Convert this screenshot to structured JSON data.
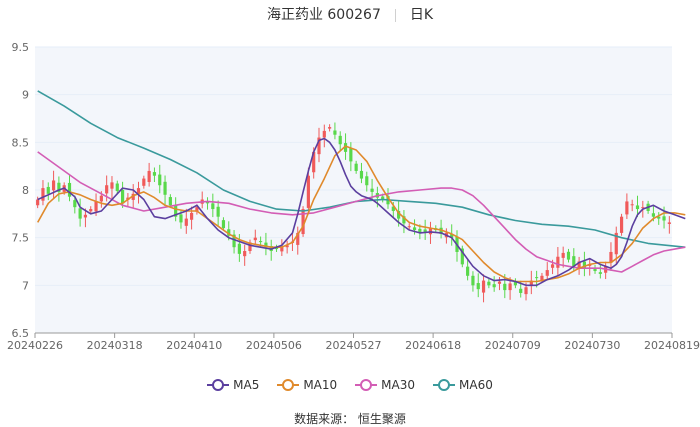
{
  "header": {
    "stock": "海正药业 600267",
    "period": "日K"
  },
  "source": "数据来源： 恒生聚源",
  "legend": [
    {
      "label": "MA5",
      "color": "#5b3f9f"
    },
    {
      "label": "MA10",
      "color": "#e08a2c"
    },
    {
      "label": "MA30",
      "color": "#d35db5"
    },
    {
      "label": "MA60",
      "color": "#3a9a9c"
    }
  ],
  "colors": {
    "up": "#f05a5a",
    "down": "#58d84a",
    "grid": "#e6eef8",
    "axis": "#666666"
  },
  "chart_data": {
    "type": "candlestick",
    "ylim": [
      6.5,
      9.5
    ],
    "yticks": [
      6.5,
      7,
      7.5,
      8,
      8.5,
      9,
      9.5
    ],
    "xticks": [
      "20240226",
      "20240318",
      "20240410",
      "20240506",
      "20240527",
      "20240618",
      "20240709",
      "20240730",
      "20240819"
    ],
    "close": [
      7.9,
      8.02,
      7.96,
      8.1,
      7.98,
      8.05,
      7.93,
      7.82,
      7.7,
      7.74,
      7.8,
      7.88,
      7.94,
      8.05,
      8.08,
      7.99,
      7.86,
      7.92,
      7.96,
      8.02,
      8.12,
      8.2,
      8.15,
      8.05,
      7.95,
      7.84,
      7.72,
      7.66,
      7.7,
      7.76,
      7.82,
      7.9,
      7.86,
      7.8,
      7.72,
      7.6,
      7.52,
      7.4,
      7.33,
      7.36,
      7.45,
      7.5,
      7.46,
      7.4,
      7.36,
      7.38,
      7.4,
      7.42,
      7.46,
      7.55,
      7.8,
      8.15,
      8.4,
      8.55,
      8.62,
      8.66,
      8.58,
      8.48,
      8.4,
      8.3,
      8.2,
      8.12,
      8.05,
      7.98,
      7.92,
      7.9,
      7.85,
      7.78,
      7.7,
      7.65,
      7.62,
      7.58,
      7.55,
      7.56,
      7.6,
      7.58,
      7.54,
      7.55,
      7.5,
      7.35,
      7.22,
      7.1,
      7.0,
      6.96,
      7.05,
      7.0,
      6.98,
      7.04,
      6.95,
      7.02,
      7.0,
      6.92,
      6.98,
      7.05,
      7.08,
      7.1,
      7.16,
      7.22,
      7.3,
      7.34,
      7.27,
      7.2,
      7.25,
      7.18,
      7.22,
      7.15,
      7.12,
      7.2,
      7.35,
      7.55,
      7.72,
      7.88,
      7.85,
      7.8,
      7.82,
      7.78,
      7.72,
      7.7,
      7.68,
      7.66
    ],
    "series": [
      {
        "name": "MA5",
        "points": [
          [
            0,
            7.9
          ],
          [
            2,
            7.95
          ],
          [
            4,
            8.0
          ],
          [
            5,
            8.02
          ],
          [
            7,
            7.93
          ],
          [
            8,
            7.82
          ],
          [
            10,
            7.75
          ],
          [
            12,
            7.78
          ],
          [
            14,
            7.9
          ],
          [
            16,
            8.02
          ],
          [
            18,
            8.0
          ],
          [
            20,
            7.9
          ],
          [
            22,
            7.72
          ],
          [
            24,
            7.7
          ],
          [
            26,
            7.74
          ],
          [
            28,
            7.78
          ],
          [
            30,
            7.84
          ],
          [
            32,
            7.7
          ],
          [
            34,
            7.58
          ],
          [
            36,
            7.5
          ],
          [
            38,
            7.46
          ],
          [
            40,
            7.42
          ],
          [
            42,
            7.4
          ],
          [
            44,
            7.38
          ],
          [
            46,
            7.42
          ],
          [
            48,
            7.55
          ],
          [
            49,
            7.75
          ],
          [
            50,
            7.98
          ],
          [
            51,
            8.2
          ],
          [
            52,
            8.4
          ],
          [
            53,
            8.52
          ],
          [
            54,
            8.54
          ],
          [
            55,
            8.5
          ],
          [
            56,
            8.42
          ],
          [
            57,
            8.3
          ],
          [
            58,
            8.16
          ],
          [
            59,
            8.04
          ],
          [
            60,
            7.98
          ],
          [
            61,
            7.94
          ],
          [
            62,
            7.92
          ],
          [
            63,
            7.9
          ],
          [
            64,
            7.86
          ],
          [
            66,
            7.76
          ],
          [
            68,
            7.66
          ],
          [
            70,
            7.58
          ],
          [
            72,
            7.55
          ],
          [
            74,
            7.56
          ],
          [
            76,
            7.55
          ],
          [
            78,
            7.5
          ],
          [
            80,
            7.35
          ],
          [
            82,
            7.2
          ],
          [
            84,
            7.1
          ],
          [
            86,
            7.05
          ],
          [
            88,
            7.06
          ],
          [
            90,
            7.04
          ],
          [
            92,
            7.0
          ],
          [
            94,
            7.0
          ],
          [
            96,
            7.06
          ],
          [
            98,
            7.1
          ],
          [
            100,
            7.16
          ],
          [
            102,
            7.24
          ],
          [
            104,
            7.28
          ],
          [
            106,
            7.22
          ],
          [
            108,
            7.18
          ],
          [
            109,
            7.22
          ],
          [
            110,
            7.3
          ],
          [
            111,
            7.45
          ],
          [
            112,
            7.62
          ],
          [
            113,
            7.74
          ],
          [
            114,
            7.8
          ],
          [
            116,
            7.84
          ],
          [
            118,
            7.78
          ],
          [
            120,
            7.74
          ],
          [
            122,
            7.7
          ]
        ]
      },
      {
        "name": "MA10",
        "points": [
          [
            0,
            7.66
          ],
          [
            2,
            7.86
          ],
          [
            4,
            7.96
          ],
          [
            6,
            7.98
          ],
          [
            8,
            7.95
          ],
          [
            10,
            7.9
          ],
          [
            12,
            7.86
          ],
          [
            14,
            7.84
          ],
          [
            16,
            7.86
          ],
          [
            18,
            7.94
          ],
          [
            20,
            7.98
          ],
          [
            22,
            7.92
          ],
          [
            24,
            7.84
          ],
          [
            26,
            7.8
          ],
          [
            28,
            7.78
          ],
          [
            30,
            7.78
          ],
          [
            32,
            7.7
          ],
          [
            34,
            7.62
          ],
          [
            36,
            7.54
          ],
          [
            38,
            7.48
          ],
          [
            40,
            7.44
          ],
          [
            42,
            7.42
          ],
          [
            44,
            7.4
          ],
          [
            46,
            7.4
          ],
          [
            48,
            7.45
          ],
          [
            50,
            7.62
          ],
          [
            52,
            7.9
          ],
          [
            54,
            8.12
          ],
          [
            56,
            8.36
          ],
          [
            58,
            8.46
          ],
          [
            60,
            8.42
          ],
          [
            62,
            8.3
          ],
          [
            64,
            8.1
          ],
          [
            66,
            7.92
          ],
          [
            68,
            7.76
          ],
          [
            70,
            7.66
          ],
          [
            72,
            7.62
          ],
          [
            74,
            7.6
          ],
          [
            76,
            7.58
          ],
          [
            78,
            7.54
          ],
          [
            80,
            7.48
          ],
          [
            82,
            7.36
          ],
          [
            84,
            7.24
          ],
          [
            86,
            7.14
          ],
          [
            88,
            7.08
          ],
          [
            90,
            7.04
          ],
          [
            92,
            7.04
          ],
          [
            94,
            7.04
          ],
          [
            96,
            7.06
          ],
          [
            98,
            7.08
          ],
          [
            100,
            7.12
          ],
          [
            102,
            7.18
          ],
          [
            104,
            7.22
          ],
          [
            106,
            7.24
          ],
          [
            108,
            7.24
          ],
          [
            110,
            7.32
          ],
          [
            112,
            7.44
          ],
          [
            114,
            7.6
          ],
          [
            116,
            7.7
          ],
          [
            118,
            7.76
          ],
          [
            120,
            7.76
          ],
          [
            122,
            7.74
          ]
        ]
      },
      {
        "name": "MA30",
        "points": [
          [
            0,
            8.4
          ],
          [
            4,
            8.24
          ],
          [
            8,
            8.08
          ],
          [
            12,
            7.96
          ],
          [
            16,
            7.84
          ],
          [
            20,
            7.78
          ],
          [
            24,
            7.82
          ],
          [
            28,
            7.86
          ],
          [
            32,
            7.88
          ],
          [
            36,
            7.86
          ],
          [
            40,
            7.8
          ],
          [
            44,
            7.76
          ],
          [
            48,
            7.74
          ],
          [
            52,
            7.76
          ],
          [
            56,
            7.82
          ],
          [
            60,
            7.88
          ],
          [
            64,
            7.94
          ],
          [
            68,
            7.98
          ],
          [
            72,
            8.0
          ],
          [
            76,
            8.02
          ],
          [
            78,
            8.02
          ],
          [
            80,
            8.0
          ],
          [
            82,
            7.94
          ],
          [
            84,
            7.84
          ],
          [
            86,
            7.72
          ],
          [
            88,
            7.6
          ],
          [
            90,
            7.48
          ],
          [
            92,
            7.38
          ],
          [
            94,
            7.3
          ],
          [
            96,
            7.26
          ],
          [
            98,
            7.22
          ],
          [
            100,
            7.2
          ],
          [
            102,
            7.18
          ],
          [
            104,
            7.18
          ],
          [
            106,
            7.18
          ],
          [
            108,
            7.16
          ],
          [
            110,
            7.14
          ],
          [
            112,
            7.2
          ],
          [
            114,
            7.26
          ],
          [
            116,
            7.32
          ],
          [
            118,
            7.36
          ],
          [
            120,
            7.38
          ],
          [
            122,
            7.4
          ]
        ]
      },
      {
        "name": "MA60",
        "points": [
          [
            0,
            9.04
          ],
          [
            5,
            8.88
          ],
          [
            10,
            8.7
          ],
          [
            15,
            8.55
          ],
          [
            20,
            8.44
          ],
          [
            25,
            8.32
          ],
          [
            30,
            8.18
          ],
          [
            35,
            8.0
          ],
          [
            40,
            7.88
          ],
          [
            45,
            7.8
          ],
          [
            50,
            7.78
          ],
          [
            55,
            7.82
          ],
          [
            60,
            7.88
          ],
          [
            65,
            7.9
          ],
          [
            70,
            7.88
          ],
          [
            75,
            7.86
          ],
          [
            80,
            7.82
          ],
          [
            85,
            7.74
          ],
          [
            90,
            7.68
          ],
          [
            95,
            7.64
          ],
          [
            100,
            7.62
          ],
          [
            105,
            7.58
          ],
          [
            110,
            7.5
          ],
          [
            115,
            7.44
          ],
          [
            122,
            7.4
          ]
        ]
      }
    ]
  }
}
